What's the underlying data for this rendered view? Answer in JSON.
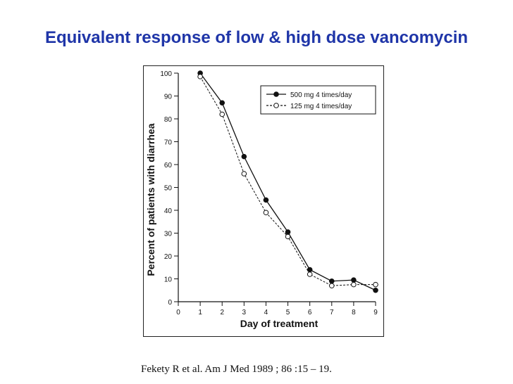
{
  "title": "Equivalent response of low & high dose vancomycin",
  "citation": "Fekety R et al. Am J Med 1989 ; 86 :15 – 19.",
  "colors": {
    "title": "#1f35a8",
    "ink": "#111111"
  },
  "chart_data": {
    "type": "line",
    "title": "",
    "xlabel": "Day of treatment",
    "ylabel": "Percent of patients with diarrhea",
    "xlim": [
      0,
      9
    ],
    "ylim": [
      0,
      100
    ],
    "xticks": [
      0,
      1,
      2,
      3,
      4,
      5,
      6,
      7,
      8,
      9
    ],
    "yticks": [
      0,
      10,
      20,
      30,
      40,
      50,
      60,
      70,
      80,
      90,
      100
    ],
    "grid": false,
    "legend_position": "top-right",
    "series": [
      {
        "name": "500 mg 4 times/day",
        "marker": "filled-circle",
        "line": "solid",
        "x": [
          1,
          2,
          3,
          4,
          5,
          6,
          7,
          8,
          9
        ],
        "y": [
          100,
          87,
          63.5,
          44.5,
          30.5,
          14,
          9,
          9.5,
          5
        ]
      },
      {
        "name": "125 mg 4 times/day",
        "marker": "open-circle",
        "line": "dashed",
        "x": [
          1,
          2,
          3,
          4,
          5,
          6,
          7,
          8,
          9
        ],
        "y": [
          98.5,
          82,
          56,
          39,
          28.5,
          12,
          7,
          7.5,
          7.5
        ]
      }
    ]
  }
}
